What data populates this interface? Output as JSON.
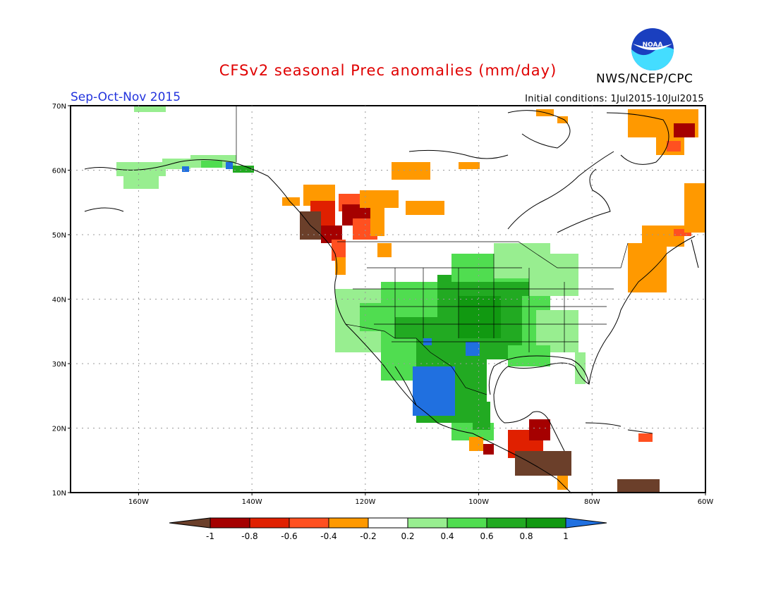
{
  "title": "CFSv2 seasonal Prec anomalies (mm/day)",
  "period": "Sep-Oct-Nov 2015",
  "agency": "NWS/NCEP/CPC",
  "logo_text": "NOAA",
  "initial_conditions": "Initial conditions: 1Jul2015-10Jul2015",
  "map": {
    "lon_range": [
      -172,
      -60
    ],
    "lat_range": [
      10,
      70
    ],
    "lat_labels": [
      "70N",
      "60N",
      "50N",
      "40N",
      "30N",
      "20N",
      "10N"
    ],
    "lon_labels": [
      "160W",
      "140W",
      "120W",
      "100W",
      "80W",
      "60W"
    ]
  },
  "colorbar": {
    "labels": [
      "-1",
      "-0.8",
      "-0.6",
      "-0.4",
      "-0.2",
      "0.2",
      "0.4",
      "0.6",
      "0.8",
      "1"
    ],
    "colors": [
      "#6b3f2a",
      "#a50000",
      "#e02000",
      "#ff5020",
      "#ff9900",
      "#ffffff",
      "#98ee90",
      "#50dd50",
      "#22aa22",
      "#119911",
      "#2070e0"
    ]
  }
}
